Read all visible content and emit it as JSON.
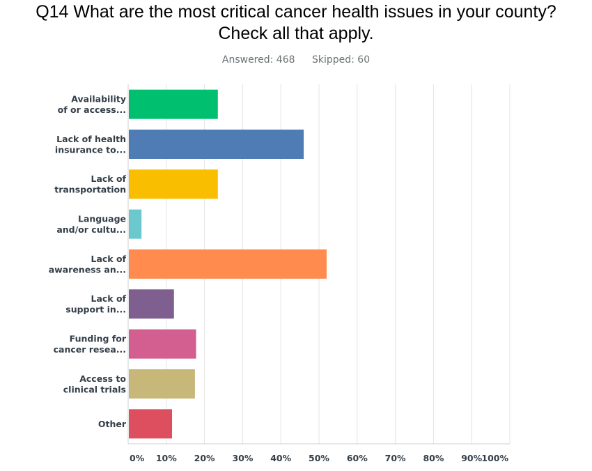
{
  "title_lines": [
    "Q14 What are the most critical cancer health issues in your county?",
    "Check all that apply."
  ],
  "summary": {
    "answered": "Answered: 468",
    "skipped": "Skipped: 60"
  },
  "chart_data": {
    "type": "bar",
    "orientation": "horizontal",
    "categories": [
      [
        "Availability",
        "of or access..."
      ],
      [
        "Lack of health",
        "insurance to..."
      ],
      [
        "Lack of",
        "transportation"
      ],
      [
        "Language",
        "and/or cultu..."
      ],
      [
        "Lack of",
        "awareness an..."
      ],
      [
        "Lack of",
        "support in..."
      ],
      [
        "Funding for",
        "cancer resea..."
      ],
      [
        "Access to",
        "clinical trials"
      ],
      [
        "Other"
      ]
    ],
    "values": [
      23.5,
      46,
      23.5,
      3.5,
      52,
      12,
      17.8,
      17.5,
      11.5
    ],
    "colors": [
      "#00bf6f",
      "#507cb6",
      "#f9be00",
      "#6bc8cd",
      "#ff8b4f",
      "#7f5f90",
      "#d25f90",
      "#c7b879",
      "#dd4f5e"
    ],
    "xlim": [
      0,
      100
    ],
    "xticks": [
      "0%",
      "10%",
      "20%",
      "30%",
      "40%",
      "50%",
      "60%",
      "70%",
      "80%",
      "90%",
      "100%"
    ],
    "grid": true,
    "xlabel": "",
    "ylabel": ""
  }
}
